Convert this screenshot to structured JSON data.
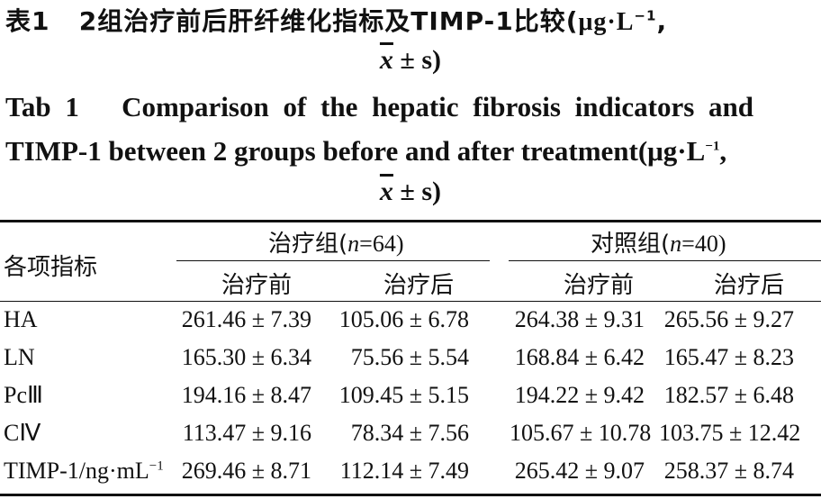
{
  "title_cn": {
    "prefix": "表1",
    "text": "2组治疗前后肝纤维化指标及TIMP-1比较(",
    "unit": "μg·L",
    "unit_sup": "−1",
    "tail": ",",
    "line2_xbar": "x",
    "line2_rest": "± s)"
  },
  "title_en": {
    "prefix": "Tab 1",
    "line1": "Comparison of the hepatic fibrosis indicators and",
    "line2": "TIMP-1 between 2 groups before and after treatment(",
    "unit": "μg·L",
    "unit_sup": "−1",
    "tail": ",",
    "line3_xbar": "x",
    "line3_rest": "± s)"
  },
  "table": {
    "col_header_item": "各项指标",
    "group1": {
      "label": "治疗组(",
      "n_label": "n",
      "n_value": "=64)"
    },
    "group2": {
      "label": "对照组(",
      "n_label": "n",
      "n_value": "=40)"
    },
    "sub_headers": [
      "治疗前",
      "治疗后",
      "治疗前",
      "治疗后"
    ],
    "rows": [
      {
        "label": "HA",
        "sup": "",
        "values": [
          "261.46 ± 7.39",
          "105.06 ± 6.78",
          "264.38 ± 9.31",
          "265.56 ± 9.27"
        ]
      },
      {
        "label": "LN",
        "sup": "",
        "values": [
          "165.30 ± 6.34",
          "75.56 ± 5.54",
          "168.84 ± 6.42",
          "165.47 ± 8.23"
        ]
      },
      {
        "label": "PcⅢ",
        "sup": "",
        "values": [
          "194.16 ± 8.47",
          "109.45 ± 5.15",
          "194.22 ± 9.42",
          "182.57 ± 6.48"
        ]
      },
      {
        "label": "CⅣ",
        "sup": "",
        "values": [
          "113.47 ± 9.16",
          "78.34 ± 7.56",
          "105.67 ± 10.78",
          "103.75 ± 12.42"
        ]
      },
      {
        "label": "TIMP-1/ng·mL",
        "sup": "−1",
        "values": [
          "269.46 ± 8.71",
          "112.14 ± 7.49",
          "265.42 ± 9.07",
          "258.37 ± 8.74"
        ]
      }
    ]
  }
}
